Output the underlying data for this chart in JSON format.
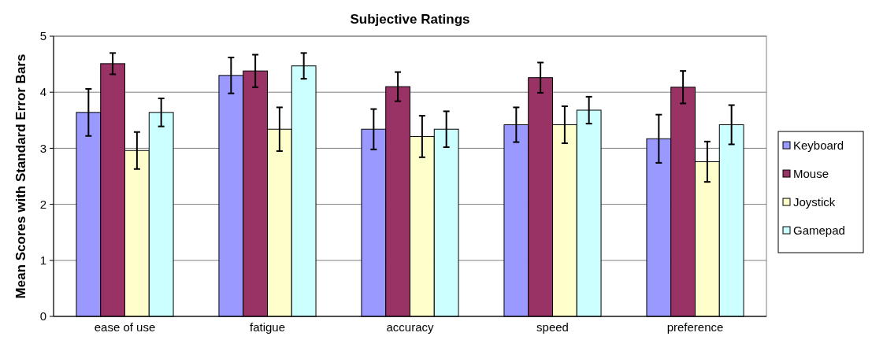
{
  "chart_data": {
    "type": "bar",
    "title": "Subjective Ratings",
    "ylabel": "Mean Scores with Standard Error Bars",
    "categories": [
      "ease of use",
      "fatigue",
      "accuracy",
      "speed",
      "preference"
    ],
    "series": [
      {
        "name": "Keyboard",
        "color": "#9999ff",
        "values": [
          3.64,
          4.3,
          3.34,
          3.42,
          3.17
        ],
        "errors": [
          0.42,
          0.32,
          0.36,
          0.31,
          0.43
        ]
      },
      {
        "name": "Mouse",
        "color": "#993366",
        "values": [
          4.51,
          4.38,
          4.1,
          4.26,
          4.09
        ],
        "errors": [
          0.19,
          0.29,
          0.26,
          0.27,
          0.29
        ]
      },
      {
        "name": "Joystick",
        "color": "#ffffcc",
        "values": [
          2.96,
          3.34,
          3.21,
          3.42,
          2.76
        ],
        "errors": [
          0.33,
          0.39,
          0.37,
          0.33,
          0.36
        ]
      },
      {
        "name": "Gamepad",
        "color": "#ccffff",
        "values": [
          3.64,
          4.47,
          3.34,
          3.68,
          3.42
        ],
        "errors": [
          0.25,
          0.23,
          0.32,
          0.24,
          0.35
        ]
      }
    ],
    "ylim": [
      0,
      5
    ],
    "yticks": [
      0,
      1,
      2,
      3,
      4,
      5
    ],
    "grid": "y",
    "legend": "right"
  }
}
